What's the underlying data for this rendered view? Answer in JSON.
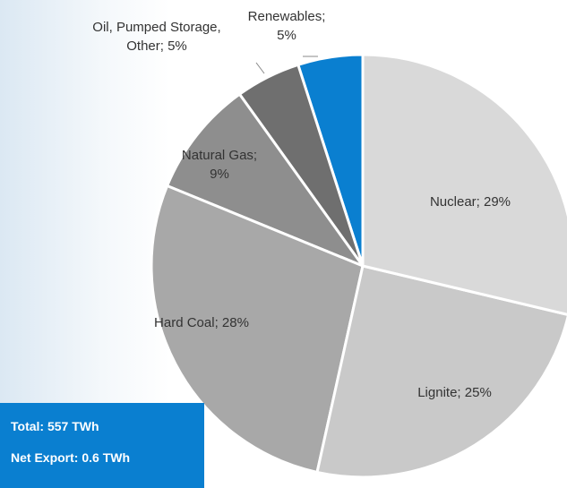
{
  "chart_data": {
    "type": "pie",
    "value_labels": [
      "Nuclear; 29%",
      "Lignite; 25%",
      "Hard Coal; 28%",
      "Natural Gas; 9%",
      "Oil, Pumped Storage, Other; 5%",
      "Renewables; 5%"
    ],
    "values": [
      29,
      25,
      28,
      9,
      5,
      5
    ],
    "colors": [
      "#d9d9d9",
      "#c9c9c9",
      "#a8a8a8",
      "#8e8e8e",
      "#6f6f6f",
      "#0a7fd0"
    ],
    "annotations": [
      "Total: 557 TWh",
      "Net Export: 0.6 TWh"
    ]
  }
}
